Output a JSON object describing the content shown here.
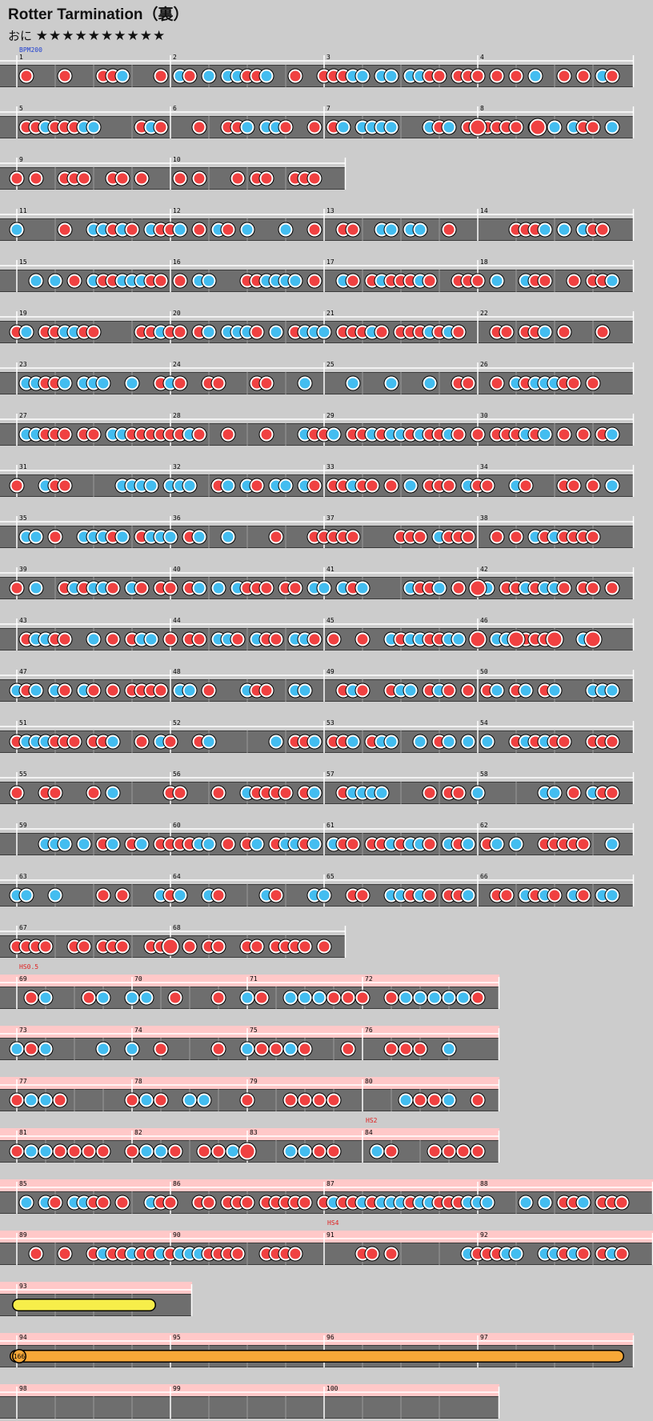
{
  "song": {
    "title": "Rotter Tarmination（裏）",
    "difficulty_label": "おに",
    "stars": "★★★★★★★★★★"
  },
  "events": {
    "bpm": "BPM200",
    "hs_slow": "HS0.5",
    "hs_2": "HS2",
    "hs_4": "HS4"
  },
  "balloon_count": "166",
  "colors": {
    "background": "#cccccc",
    "lane": "#6e6e6e",
    "don": "#f04141",
    "ka": "#43bdf0",
    "drumroll": "#f7ee4a",
    "balloon": "#f7a838",
    "scroll_band": "#ffc8c8"
  },
  "chart_data": {
    "type": "taiko-notechart",
    "legend": {
      "don": "red note",
      "ka": "blue note",
      "big": "large note",
      "roll": "yellow bar",
      "balloon": "orange bar"
    },
    "rows": [
      {
        "measures": [
          "1",
          "2",
          "3",
          "4"
        ],
        "events": [
          "BPM200"
        ]
      },
      {
        "measures": [
          "5",
          "6",
          "7",
          "8"
        ]
      },
      {
        "measures": [
          "9",
          "10"
        ]
      },
      {
        "measures": [
          "11",
          "12",
          "13",
          "14"
        ]
      },
      {
        "measures": [
          "15",
          "16",
          "17",
          "18"
        ]
      },
      {
        "measures": [
          "19",
          "20",
          "21",
          "22"
        ]
      },
      {
        "measures": [
          "23",
          "24",
          "25",
          "26"
        ]
      },
      {
        "measures": [
          "27",
          "28",
          "29",
          "30"
        ]
      },
      {
        "measures": [
          "31",
          "32",
          "33",
          "34"
        ]
      },
      {
        "measures": [
          "35",
          "36",
          "37",
          "38"
        ]
      },
      {
        "measures": [
          "39",
          "40",
          "41",
          "42"
        ]
      },
      {
        "measures": [
          "43",
          "44",
          "45",
          "46"
        ]
      },
      {
        "measures": [
          "47",
          "48",
          "49",
          "50"
        ]
      },
      {
        "measures": [
          "51",
          "52",
          "53",
          "54"
        ]
      },
      {
        "measures": [
          "55",
          "56",
          "57",
          "58"
        ]
      },
      {
        "measures": [
          "59",
          "60",
          "61",
          "62"
        ]
      },
      {
        "measures": [
          "63",
          "64",
          "65",
          "66"
        ]
      },
      {
        "measures": [
          "67",
          "68"
        ]
      },
      {
        "measures": [
          "69",
          "70",
          "71",
          "72"
        ],
        "events": [
          "HS0.5"
        ]
      },
      {
        "measures": [
          "73",
          "74",
          "75",
          "76"
        ]
      },
      {
        "measures": [
          "77",
          "78",
          "79",
          "80"
        ]
      },
      {
        "measures": [
          "81",
          "82",
          "83",
          "84"
        ],
        "events": [
          "HS2"
        ]
      },
      {
        "measures": [
          "85",
          "86",
          "87",
          "88"
        ]
      },
      {
        "measures": [
          "89",
          "90",
          "91",
          "92"
        ],
        "events": [
          "HS4"
        ]
      },
      {
        "measures": [
          "93"
        ]
      },
      {
        "measures": [
          "94",
          "95",
          "96",
          "97"
        ]
      },
      {
        "measures": [
          "98",
          "99",
          "100"
        ]
      }
    ]
  }
}
